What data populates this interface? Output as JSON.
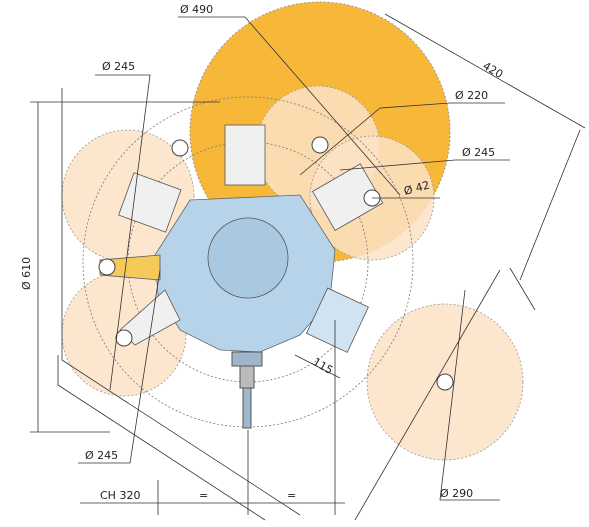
{
  "dimensions": [
    "Ø 490",
    "Ø 245",
    "Ø 220",
    "Ø 245",
    "Ø 42",
    "420",
    "Ø 610",
    "115",
    "Ø 245",
    "Ø 290",
    "CH 320",
    "=",
    "="
  ]
}
